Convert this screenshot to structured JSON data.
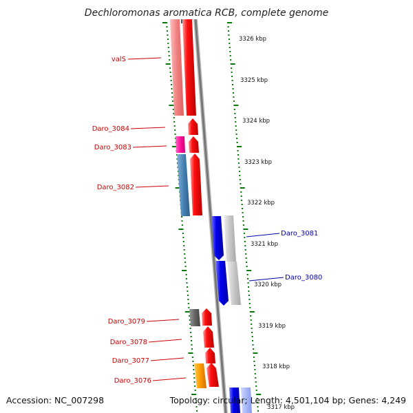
{
  "title": "Dechloromonas aromatica RCB, complete genome",
  "footer": {
    "accession": "Accession: NC_007298",
    "topology": "Topology: circular; Length: 4,501,104 bp; Genes: 4,249"
  },
  "scale_labels": [
    "3326 kbp",
    "3325 kbp",
    "3324 kbp",
    "3323 kbp",
    "3322 kbp",
    "3321 kbp",
    "3320 kbp",
    "3319 kbp",
    "3318 kbp",
    "3317 kbp"
  ],
  "genes": [
    {
      "name": "valS",
      "strand": "minus",
      "label_color": "#cc0000"
    },
    {
      "name": "Daro_3084",
      "strand": "minus",
      "label_color": "#cc0000"
    },
    {
      "name": "Daro_3083",
      "strand": "minus",
      "label_color": "#cc0000"
    },
    {
      "name": "Daro_3082",
      "strand": "minus",
      "label_color": "#cc0000"
    },
    {
      "name": "Daro_3081",
      "strand": "plus",
      "label_color": "#0000aa"
    },
    {
      "name": "Daro_3080",
      "strand": "plus",
      "label_color": "#0000aa"
    },
    {
      "name": "Daro_3079",
      "strand": "minus",
      "label_color": "#cc0000"
    },
    {
      "name": "Daro_3078",
      "strand": "minus",
      "label_color": "#cc0000"
    },
    {
      "name": "Daro_3077",
      "strand": "minus",
      "label_color": "#cc0000"
    },
    {
      "name": "Daro_3076",
      "strand": "minus",
      "label_color": "#cc0000"
    }
  ],
  "colors": {
    "minus_strand": "#ff0000",
    "plus_strand": "#0000ee",
    "backbone": "#888888",
    "ticks": "#007700"
  }
}
